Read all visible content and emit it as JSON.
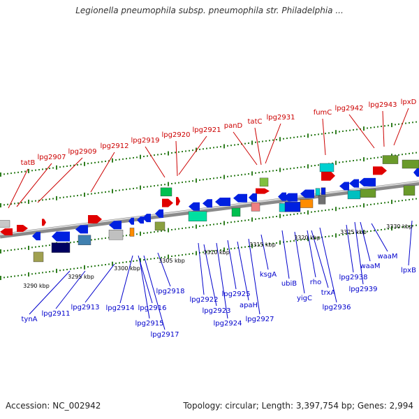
{
  "title": "Legionella pneumophila subsp. pneumophila str. Philadelphia ...",
  "footer": {
    "accession": "Accession: NC_002942",
    "summary": "Topology: circular; Length: 3,397,754 bp; Genes: 2,994"
  },
  "colors": {
    "top_label": "#cc0000",
    "bottom_label": "#0000cc",
    "tick": "#2e7d1e",
    "backbone": "#808080"
  },
  "scale": {
    "unit": "kbp",
    "ticks": [
      {
        "kbp": 3290,
        "label": "3290 kbp"
      },
      {
        "kbp": 3295,
        "label": "3295 kbp"
      },
      {
        "kbp": 3300,
        "label": "3300 kbp"
      },
      {
        "kbp": 3305,
        "label": "3305 kbp"
      },
      {
        "kbp": 3310,
        "label": "3310 kbp"
      },
      {
        "kbp": 3315,
        "label": "3315 kbp"
      },
      {
        "kbp": 3320,
        "label": "3320 kbp"
      },
      {
        "kbp": 3325,
        "label": "3325 kbp"
      },
      {
        "kbp": 3330,
        "label": "3330 kbp"
      }
    ]
  },
  "top_labels": [
    {
      "text": "tatB",
      "kbp": 3290.3
    },
    {
      "text": "lpg2907",
      "kbp": 3291.6
    },
    {
      "text": "lpg2909",
      "kbp": 3293.8
    },
    {
      "text": "lpg2912",
      "kbp": 3297.2
    },
    {
      "text": "lpg2919",
      "kbp": 3304.0
    },
    {
      "text": "lpg2920",
      "kbp": 3305.0
    },
    {
      "text": "lpg2921",
      "kbp": 3307.5
    },
    {
      "text": "panD",
      "kbp": 3313.3
    },
    {
      "text": "tatC",
      "kbp": 3314.5
    },
    {
      "text": "lpg2931",
      "kbp": 3315.4
    },
    {
      "text": "fumC",
      "kbp": 3320.7
    },
    {
      "text": "lpg2942",
      "kbp": 3324.3
    },
    {
      "text": "lpg2943",
      "kbp": 3325.5
    },
    {
      "text": "lpxD",
      "kbp": 3326.6
    }
  ],
  "bottom_labels": [
    {
      "text": "tynA",
      "kbp": 3289.5
    },
    {
      "text": "lpg2911",
      "kbp": 3293.0
    },
    {
      "text": "lpg2913",
      "kbp": 3296.6
    },
    {
      "text": "lpg2914",
      "kbp": 3298.9
    },
    {
      "text": "lpg2916",
      "kbp": 3299.7
    },
    {
      "text": "lpg2915",
      "kbp": 3299.3
    },
    {
      "text": "lpg2917",
      "kbp": 3300.6
    },
    {
      "text": "lpg2918",
      "kbp": 3302.1
    },
    {
      "text": "lpg2922",
      "kbp": 3305.3
    },
    {
      "text": "lpg2923",
      "kbp": 3306.6
    },
    {
      "text": "lpg2924",
      "kbp": 3308.3
    },
    {
      "text": "lpg2925",
      "kbp": 3308.9
    },
    {
      "text": "apaH",
      "kbp": 3311.0
    },
    {
      "text": "lpg2927",
      "kbp": 3311.8
    },
    {
      "text": "ksgA",
      "kbp": 3313.2
    },
    {
      "text": "ubiB",
      "kbp": 3315.2
    },
    {
      "text": "yigC",
      "kbp": 3317.0
    },
    {
      "text": "rho",
      "kbp": 3318.3
    },
    {
      "text": "trxA",
      "kbp": 3319.4
    },
    {
      "text": "lpg2936",
      "kbp": 3320.8
    },
    {
      "text": "lpg2938",
      "kbp": 3322.1
    },
    {
      "text": "lpg2939",
      "kbp": 3323.5
    },
    {
      "text": "waaM",
      "kbp": 3325.3
    },
    {
      "text": "waaM",
      "kbp": 3324.6
    },
    {
      "text": "lpxB",
      "kbp": 3328.4
    }
  ]
}
